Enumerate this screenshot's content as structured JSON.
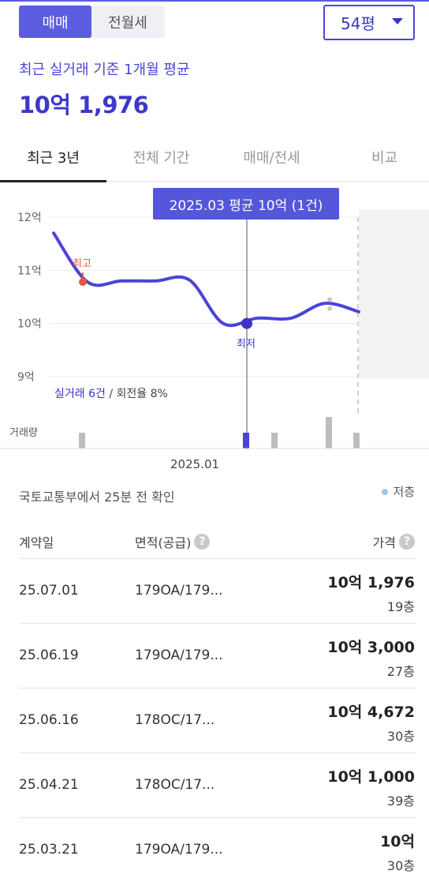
{
  "trade_type": {
    "sale": "매매",
    "rent": "전월세"
  },
  "area_select": {
    "value": "54평"
  },
  "summary": {
    "subtitle": "최근 실거래 기준 1개월 평균",
    "price": "10억 1,976"
  },
  "tabs": [
    {
      "label": "최근 3년"
    },
    {
      "label": "전체 기간"
    },
    {
      "label": "매매/전세"
    },
    {
      "label": "비교"
    }
  ],
  "chart_data": {
    "type": "line",
    "title": "",
    "ylabel": "",
    "y_ticks": [
      "12억",
      "11억",
      "10억",
      "9억"
    ],
    "ylim": [
      9,
      12
    ],
    "series": [
      {
        "values": [
          11.7,
          10.78,
          10.8,
          10.8,
          10.82,
          10.0,
          10.1,
          10.1,
          10.38,
          10.22
        ]
      }
    ],
    "annotations": {
      "high": "최고",
      "low": "최저"
    },
    "tooltip": "2025.03 평균 10억 (1건)",
    "stats": {
      "trades": "실거래 6건",
      "separator": " / ",
      "turnover": "회전율 8%"
    },
    "volume_label": "거래량",
    "x_tick": "2025.01",
    "colors": {
      "line": "#4a44d8",
      "high": "#e9583a",
      "low": "#3a36c9",
      "bar": "#bdbdbd",
      "bar_active": "#4a44d8"
    }
  },
  "source": {
    "text": "국토교통부에서 25분 전 확인",
    "legend": "저층"
  },
  "table": {
    "headers": {
      "date": "계약일",
      "area": "면적(공급)",
      "price": "가격"
    },
    "rows": [
      {
        "date": "25.07.01",
        "area": "179OA/179...",
        "price": "10억 1,976",
        "floor": "19층"
      },
      {
        "date": "25.06.19",
        "area": "179OA/179...",
        "price": "10억 3,000",
        "floor": "27층"
      },
      {
        "date": "25.06.16",
        "area": "178OC/17...",
        "price": "10억 4,672",
        "floor": "30층"
      },
      {
        "date": "25.04.21",
        "area": "178OC/17...",
        "price": "10억 1,000",
        "floor": "39층"
      },
      {
        "date": "25.03.21",
        "area": "179OA/179...",
        "price": "10억",
        "floor": "30층"
      }
    ]
  }
}
